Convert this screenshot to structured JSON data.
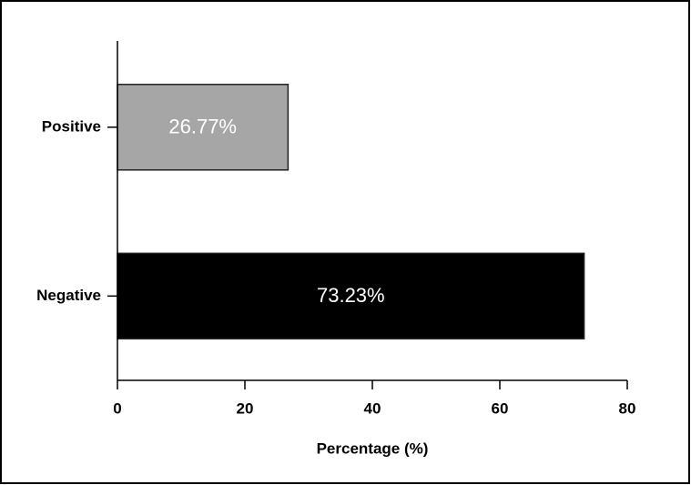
{
  "chart_data": {
    "type": "hbar",
    "categories": [
      "Positive",
      "Negative"
    ],
    "values": [
      26.77,
      73.23
    ],
    "value_labels": [
      "26.77%",
      "73.23%"
    ],
    "colors": [
      "#a6a6a6",
      "#000000"
    ],
    "xlabel": "Percentage (%)",
    "xlim": [
      0,
      80
    ],
    "xticks": [
      0,
      20,
      40,
      60,
      80
    ]
  }
}
